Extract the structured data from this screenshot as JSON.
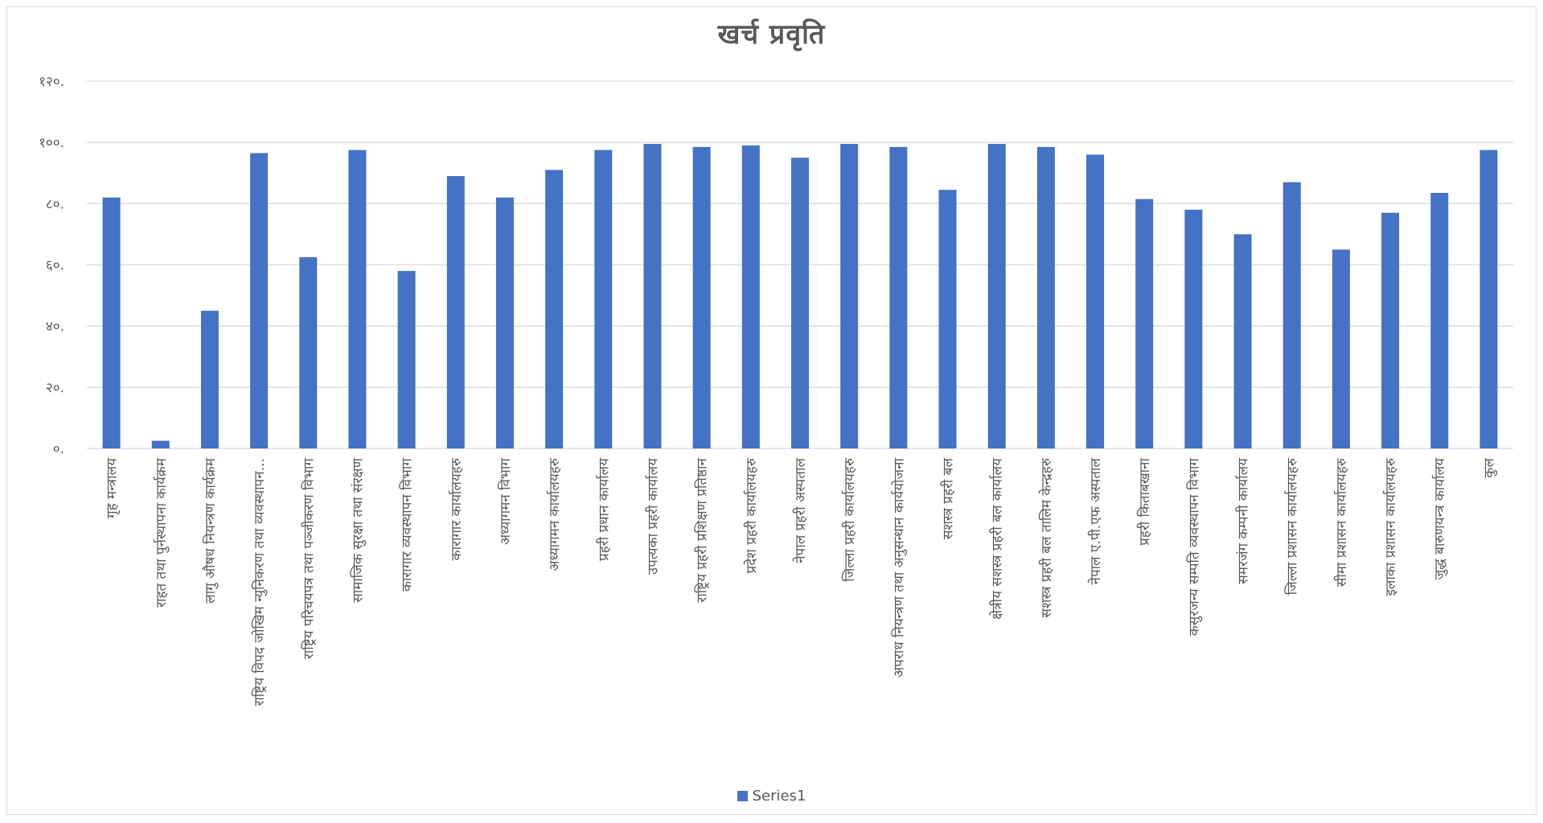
{
  "chart_data": {
    "type": "bar",
    "title": "खर्च प्रवृति",
    "xlabel": "",
    "ylabel": "",
    "ylim": [
      0,
      120
    ],
    "yticks": [
      0,
      20,
      40,
      60,
      80,
      100,
      120
    ],
    "ytick_labels": [
      "०.",
      "२०.",
      "४०.",
      "६०.",
      "८०.",
      "१००.",
      "१२०."
    ],
    "grid": true,
    "legend_position": "bottom",
    "bar_color": "#4472c4",
    "categories": [
      "गृह मन्त्रालय",
      "राहत तथा पुर्नस्थापना कार्यक्रम",
      "लागु औषध नियन्त्रण कार्यक्रम",
      "राष्ट्रिय विपद जोखिम न्युनिकरण तथा व्यवस्थापन...",
      "राष्ट्रिय परिचयपत्र तथा पञ्जीकरण विभाग",
      "सामाजिक सुरक्षा तथा संरक्षण",
      "कारागार व्यवस्थापन विभाग",
      "कारागार कार्यालयहरु",
      "अध्यागमन विभाग",
      "अध्यागमन कार्यालयहरु",
      "प्रहरी प्रधान कार्यालय",
      "उपत्यका प्रहरी कार्यालय",
      "राष्ट्रिय प्रहरी प्रशिक्षण प्रतिष्ठान",
      "प्रदेश प्रहरी कार्यालयहरु",
      "नेपाल प्रहरी अस्पताल",
      "जिल्ला प्रहरी कार्यालयहरु",
      "अपराध नियन्त्रण तथा अनुसन्धान कार्ययोजना",
      "सशस्त्र प्रहरी बल",
      "क्षेत्रीय सशस्त्र प्रहरी बल कार्यालय",
      "सशस्त्र प्रहरी बल तालिम केन्द्रहरु",
      "नेपाल ए.पी.एफ अस्पताल",
      "प्रहरी किताबखाना",
      "कसुरजन्य सम्पति व्यवस्थापन विभाग",
      "समरजंग कम्पनी कार्यालय",
      "जिल्ला प्रशासन कार्यालयहरु",
      "सीमा प्रशासन कार्यालयहरु",
      "इलाका प्रशासन कार्यालयहरु",
      "जुद्ध बारुणयन्त्र कार्यालय",
      "कुल"
    ],
    "series": [
      {
        "name": "Series1",
        "values": [
          82,
          2.5,
          45,
          96.5,
          62.5,
          97.5,
          58,
          89,
          82,
          91,
          97.5,
          99.5,
          98.5,
          99,
          95,
          99.5,
          98.5,
          84.5,
          99.5,
          98.5,
          96,
          81.5,
          78,
          70,
          87,
          65,
          77,
          83.5,
          97.5
        ]
      }
    ]
  }
}
